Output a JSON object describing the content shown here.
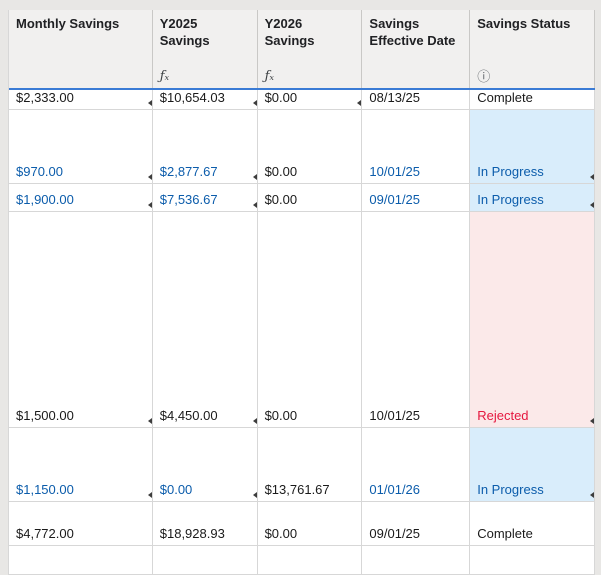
{
  "colors": {
    "frame-bg": "#e8e7e5",
    "header-bg": "#f1f0ef",
    "header-line": "#c9c8c6",
    "grid-line": "#d7d7d7",
    "divider-blue": "#3a7bd5",
    "text-default": "#1a1a1a",
    "text-blue": "#0b5cab",
    "text-red": "#e5173f",
    "status-blue-bg": "#d9edfb",
    "status-red-bg": "#fbe9e9",
    "icon-gray": "#5f6368"
  },
  "icons": {
    "formula": "ƒₓ",
    "info": "ⓘ"
  },
  "table": {
    "columns": [
      {
        "label": "Monthly Savings",
        "icon": null,
        "key": "monthly-savings"
      },
      {
        "label": "Y2025\nSavings",
        "icon": "formula",
        "key": "y2025-savings"
      },
      {
        "label": "Y2026\nSavings",
        "icon": "formula",
        "key": "y2026-savings"
      },
      {
        "label": "Savings\nEffective Date",
        "icon": null,
        "key": "savings-effective-date"
      },
      {
        "label": "Savings Status",
        "icon": "info",
        "key": "savings-status"
      }
    ],
    "rows": [
      {
        "status_style": "none",
        "cells": [
          {
            "text": "$2,333.00",
            "color": "default",
            "marker": true
          },
          {
            "text": "$10,654.03",
            "color": "default",
            "marker": true
          },
          {
            "text": "$0.00",
            "color": "default",
            "marker": true
          },
          {
            "text": "08/13/25",
            "color": "default",
            "marker": false
          },
          {
            "text": "Complete",
            "color": "default",
            "marker": false
          }
        ]
      },
      {
        "status_style": "in-progress",
        "cells": [
          {
            "text": "$970.00",
            "color": "blue",
            "marker": true
          },
          {
            "text": "$2,877.67",
            "color": "blue",
            "marker": true
          },
          {
            "text": "$0.00",
            "color": "default",
            "marker": false
          },
          {
            "text": "10/01/25",
            "color": "blue",
            "marker": false
          },
          {
            "text": "In Progress",
            "color": "blue",
            "marker": true
          }
        ]
      },
      {
        "status_style": "in-progress",
        "cells": [
          {
            "text": "$1,900.00",
            "color": "blue",
            "marker": true
          },
          {
            "text": "$7,536.67",
            "color": "blue",
            "marker": true
          },
          {
            "text": "$0.00",
            "color": "default",
            "marker": false
          },
          {
            "text": "09/01/25",
            "color": "blue",
            "marker": false
          },
          {
            "text": "In Progress",
            "color": "blue",
            "marker": true
          }
        ]
      },
      {
        "status_style": "rejected",
        "cells": [
          {
            "text": "$1,500.00",
            "color": "default",
            "marker": true
          },
          {
            "text": "$4,450.00",
            "color": "default",
            "marker": true
          },
          {
            "text": "$0.00",
            "color": "default",
            "marker": false
          },
          {
            "text": "10/01/25",
            "color": "default",
            "marker": false
          },
          {
            "text": "Rejected",
            "color": "red",
            "marker": true
          }
        ]
      },
      {
        "status_style": "in-progress",
        "cells": [
          {
            "text": "$1,150.00",
            "color": "blue",
            "marker": true
          },
          {
            "text": "$0.00",
            "color": "blue",
            "marker": true
          },
          {
            "text": "$13,761.67",
            "color": "default",
            "marker": false
          },
          {
            "text": "01/01/26",
            "color": "blue",
            "marker": false
          },
          {
            "text": "In Progress",
            "color": "blue",
            "marker": true
          }
        ]
      },
      {
        "status_style": "none",
        "cells": [
          {
            "text": "$4,772.00",
            "color": "default",
            "marker": false
          },
          {
            "text": "$18,928.93",
            "color": "default",
            "marker": false
          },
          {
            "text": "$0.00",
            "color": "default",
            "marker": false
          },
          {
            "text": "09/01/25",
            "color": "default",
            "marker": false
          },
          {
            "text": "Complete",
            "color": "default",
            "marker": false
          }
        ]
      },
      {
        "status_style": "none",
        "cells": [
          {
            "text": "",
            "color": "default",
            "marker": false
          },
          {
            "text": "",
            "color": "default",
            "marker": false
          },
          {
            "text": "",
            "color": "default",
            "marker": false
          },
          {
            "text": "",
            "color": "default",
            "marker": false
          },
          {
            "text": "",
            "color": "default",
            "marker": false
          }
        ]
      }
    ]
  }
}
